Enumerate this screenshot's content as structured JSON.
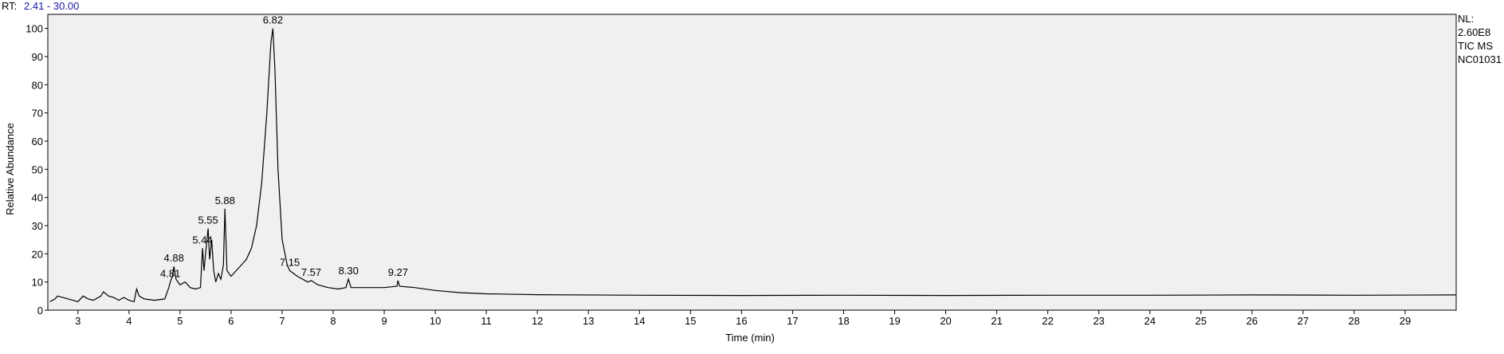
{
  "chart_data": {
    "type": "line",
    "rt_label": "RT:",
    "rt_range": "2.41 - 30.00",
    "side_info": [
      "NL:",
      "2.60E8",
      "TIC  MS",
      "NC01031"
    ],
    "x_label": "Time (min)",
    "y_label": "Relative Abundance",
    "xlim": [
      2.41,
      30.0
    ],
    "ylim": [
      0,
      105
    ],
    "xticks": [
      3,
      4,
      5,
      6,
      7,
      8,
      9,
      10,
      11,
      12,
      13,
      14,
      15,
      16,
      17,
      18,
      19,
      20,
      21,
      22,
      23,
      24,
      25,
      26,
      27,
      28,
      29
    ],
    "yticks": [
      0,
      10,
      20,
      30,
      40,
      50,
      60,
      70,
      80,
      90,
      100
    ],
    "series": [
      {
        "name": "TIC",
        "color": "#000000",
        "x": [
          2.45,
          2.55,
          2.6,
          2.7,
          2.9,
          3.0,
          3.1,
          3.2,
          3.3,
          3.45,
          3.5,
          3.6,
          3.7,
          3.8,
          3.9,
          4.0,
          4.1,
          4.15,
          4.2,
          4.3,
          4.5,
          4.7,
          4.78,
          4.81,
          4.85,
          4.88,
          4.92,
          5.0,
          5.1,
          5.2,
          5.3,
          5.4,
          5.44,
          5.47,
          5.5,
          5.55,
          5.58,
          5.62,
          5.66,
          5.7,
          5.75,
          5.8,
          5.85,
          5.88,
          5.92,
          6.0,
          6.1,
          6.2,
          6.3,
          6.4,
          6.5,
          6.6,
          6.7,
          6.78,
          6.82,
          6.86,
          6.92,
          7.0,
          7.1,
          7.15,
          7.3,
          7.5,
          7.57,
          7.7,
          7.9,
          8.1,
          8.25,
          8.3,
          8.35,
          8.6,
          9.0,
          9.25,
          9.27,
          9.3,
          9.6,
          10,
          10.5,
          11,
          12,
          14,
          16,
          18,
          20,
          22,
          24,
          26,
          28,
          30
        ],
        "values": [
          3,
          4,
          5,
          4.5,
          3.5,
          3,
          5,
          4,
          3.5,
          5,
          6.5,
          5,
          4.5,
          3.5,
          4.5,
          3.5,
          3,
          7.5,
          5,
          4,
          3.5,
          4,
          8,
          10,
          12,
          15.5,
          11,
          9,
          10,
          8,
          7.5,
          8,
          22,
          14,
          20,
          29,
          18,
          25,
          14,
          10,
          13,
          11,
          16,
          36,
          14,
          12,
          14,
          16,
          18,
          22,
          30,
          45,
          70,
          95,
          100,
          85,
          50,
          25,
          16,
          14,
          12,
          10,
          10.5,
          9,
          8,
          7.5,
          8,
          11,
          8,
          8,
          8,
          8.5,
          10.5,
          8.5,
          8,
          7,
          6.2,
          5.8,
          5.5,
          5.3,
          5.2,
          5.3,
          5.2,
          5.3,
          5.3,
          5.4,
          5.3,
          5.4
        ]
      }
    ],
    "peaks": {
      "values": [
        4.81,
        4.88,
        5.44,
        5.55,
        5.88,
        6.82,
        7.15,
        7.57,
        8.3,
        9.27
      ],
      "value_labels": [
        "4.81",
        "4.88",
        "5.44",
        "5.55",
        "5.88",
        "6.82",
        "7.15",
        "7.57",
        "8.30",
        "9.27"
      ],
      "heights": [
        10,
        15.5,
        22,
        29,
        36,
        100,
        14,
        10.5,
        11,
        10.5
      ]
    }
  }
}
